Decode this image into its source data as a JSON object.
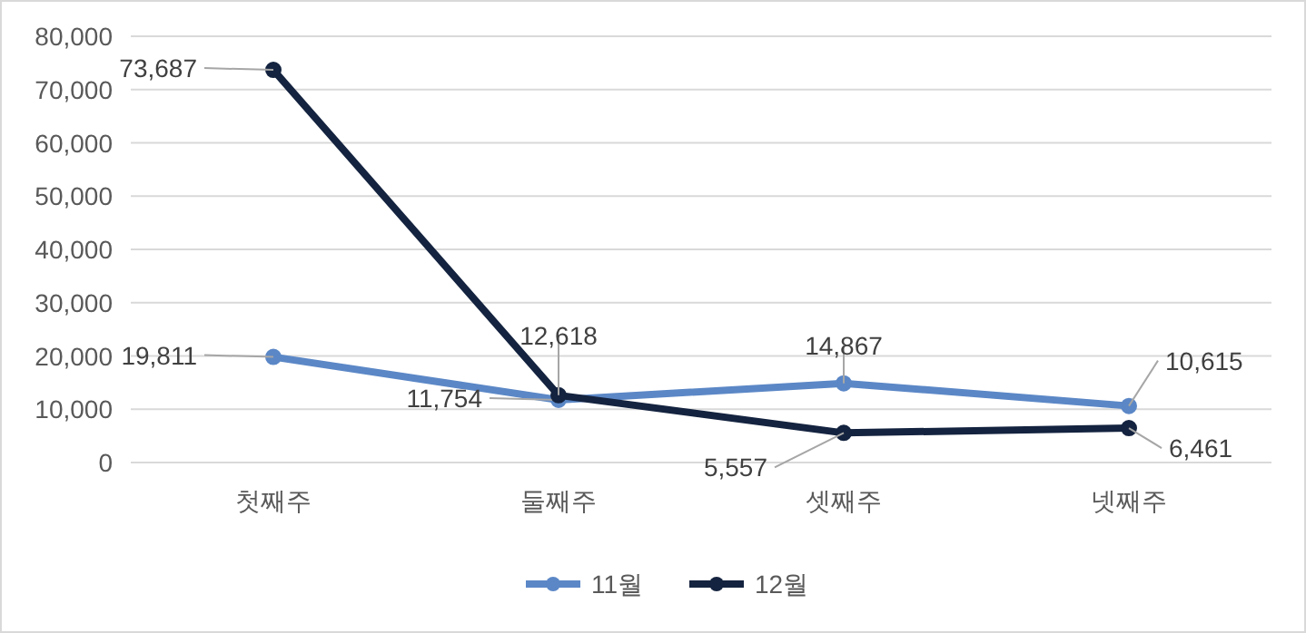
{
  "chart_data": {
    "type": "line",
    "categories": [
      "첫째주",
      "둘째주",
      "셋째주",
      "넷째주"
    ],
    "series": [
      {
        "name": "11월",
        "color": "#5b87c6",
        "values": [
          19811,
          11754,
          14867,
          10615
        ],
        "value_labels": [
          "19,811",
          "11,754",
          "14,867",
          "10,615"
        ]
      },
      {
        "name": "12월",
        "color": "#14233f",
        "values": [
          73687,
          12618,
          5557,
          6461
        ],
        "value_labels": [
          "73,687",
          "12,618",
          "5,557",
          "6,461"
        ]
      }
    ],
    "ylim": [
      0,
      80000
    ],
    "yticks": [
      {
        "value": 0,
        "label": "0"
      },
      {
        "value": 10000,
        "label": "10,000"
      },
      {
        "value": 20000,
        "label": "20,000"
      },
      {
        "value": 30000,
        "label": "30,000"
      },
      {
        "value": 40000,
        "label": "40,000"
      },
      {
        "value": 50000,
        "label": "50,000"
      },
      {
        "value": 60000,
        "label": "60,000"
      },
      {
        "value": 70000,
        "label": "70,000"
      },
      {
        "value": 80000,
        "label": "80,000"
      }
    ],
    "grid": "y",
    "legend": "bottom",
    "marker": "circle",
    "line_style": "solid"
  }
}
